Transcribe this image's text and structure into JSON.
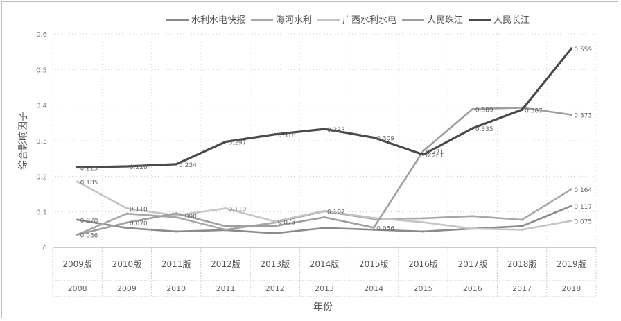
{
  "chart_data": {
    "type": "line",
    "title": "",
    "xlabel": "年份",
    "ylabel": "综合影响因子",
    "ylim": [
      0,
      0.6
    ],
    "yticks": [
      "0",
      "0.1",
      "0.2",
      "0.3",
      "0.4",
      "0.5",
      "0.6"
    ],
    "grid": true,
    "legend_position": "top-right",
    "categories_top": [
      "2009版",
      "2010版",
      "2011版",
      "2012版",
      "2013版",
      "2014版",
      "2015版",
      "2016版",
      "2017版",
      "2018版",
      "2019版"
    ],
    "categories_bottom": [
      "2008",
      "2009",
      "2010",
      "2011",
      "2012",
      "2013",
      "2014",
      "2015",
      "2016",
      "2017",
      "2018"
    ],
    "series": [
      {
        "name": "水利水电快报",
        "color": "#8a8a8a",
        "values": [
          0.078,
          0.055,
          0.045,
          0.049,
          0.04,
          0.055,
          0.05,
          0.045,
          0.053,
          0.06,
          0.117
        ]
      },
      {
        "name": "海河水利",
        "color": "#a8a8a8",
        "values": [
          0.036,
          0.095,
          0.085,
          0.05,
          0.07,
          0.102,
          0.08,
          0.082,
          0.088,
          0.078,
          0.164
        ]
      },
      {
        "name": "广西水利水电",
        "color": "#c4c4c4",
        "values": [
          0.185,
          0.11,
          0.09,
          0.11,
          0.073,
          0.103,
          0.083,
          0.071,
          0.053,
          0.05,
          0.075
        ]
      },
      {
        "name": "人民珠江",
        "color": "#9e9e9e",
        "values": [
          0.036,
          0.07,
          0.096,
          0.06,
          0.06,
          0.085,
          0.056,
          0.271,
          0.389,
          0.393,
          0.373
        ]
      },
      {
        "name": "人民长江",
        "color": "#4a4a4a",
        "values": [
          0.225,
          0.228,
          0.234,
          0.297,
          0.318,
          0.333,
          0.309,
          0.261,
          0.335,
          0.387,
          0.559
        ]
      }
    ],
    "data_labels": [
      {
        "series": 0,
        "i": 0,
        "text": "0.078"
      },
      {
        "series": 0,
        "i": 10,
        "text": "0.117"
      },
      {
        "series": 1,
        "i": 0,
        "text": "0.036"
      },
      {
        "series": 1,
        "i": 5,
        "text": "0.102"
      },
      {
        "series": 1,
        "i": 10,
        "text": "0.164"
      },
      {
        "series": 2,
        "i": 0,
        "text": "0.185"
      },
      {
        "series": 2,
        "i": 1,
        "text": "0.110"
      },
      {
        "series": 2,
        "i": 2,
        "text": "0.090"
      },
      {
        "series": 2,
        "i": 3,
        "text": "0.110"
      },
      {
        "series": 2,
        "i": 4,
        "text": "0.073"
      },
      {
        "series": 2,
        "i": 10,
        "text": "0.075"
      },
      {
        "series": 3,
        "i": 1,
        "text": "0.070"
      },
      {
        "series": 3,
        "i": 6,
        "text": "0.056"
      },
      {
        "series": 3,
        "i": 7,
        "text": "0.271"
      },
      {
        "series": 3,
        "i": 8,
        "text": "0.389"
      },
      {
        "series": 3,
        "i": 10,
        "text": "0.373"
      },
      {
        "series": 4,
        "i": 0,
        "text": "0.225"
      },
      {
        "series": 4,
        "i": 1,
        "text": "0.228"
      },
      {
        "series": 4,
        "i": 2,
        "text": "0.234"
      },
      {
        "series": 4,
        "i": 3,
        "text": "0.297"
      },
      {
        "series": 4,
        "i": 4,
        "text": "0.318"
      },
      {
        "series": 4,
        "i": 5,
        "text": "0.333"
      },
      {
        "series": 4,
        "i": 6,
        "text": "0.309"
      },
      {
        "series": 4,
        "i": 7,
        "text": "0.261"
      },
      {
        "series": 4,
        "i": 8,
        "text": "0.335"
      },
      {
        "series": 4,
        "i": 9,
        "text": "0.387"
      },
      {
        "series": 4,
        "i": 10,
        "text": "0.559"
      }
    ]
  }
}
